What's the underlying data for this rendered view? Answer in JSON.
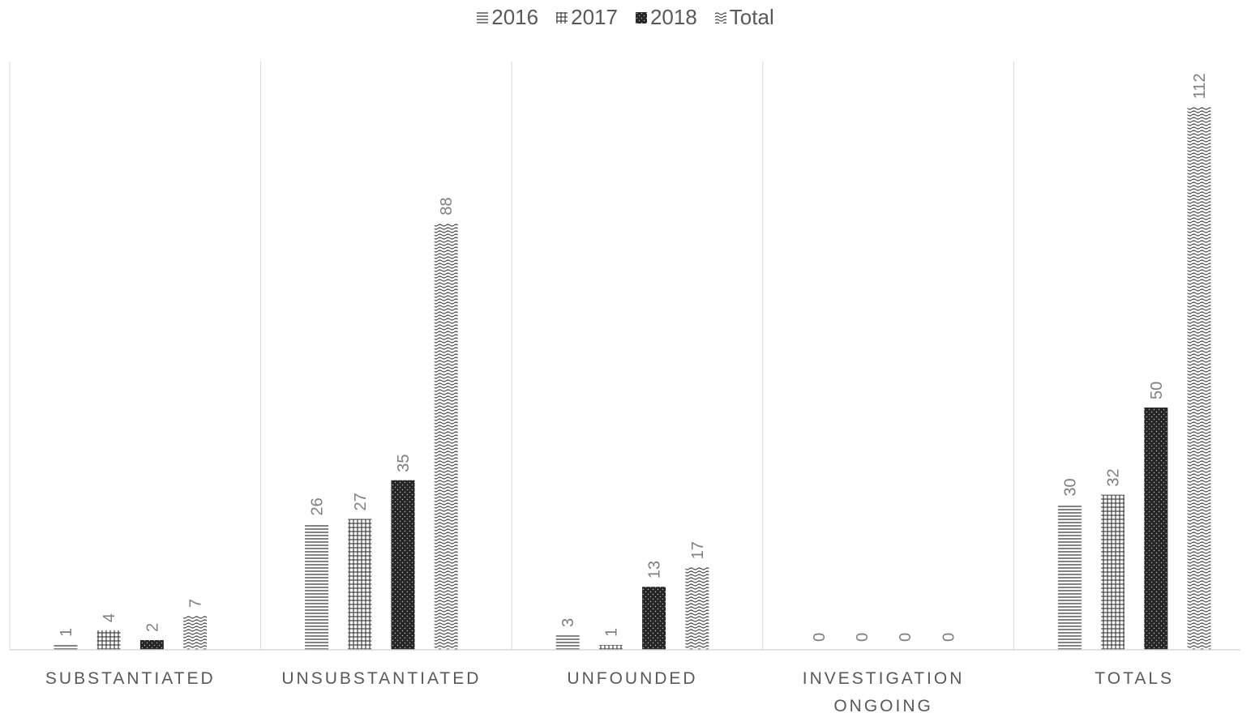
{
  "chart_data": {
    "type": "bar",
    "categories": [
      "SUBSTANTIATED",
      "UNSUBSTANTIATED",
      "UNFOUNDED",
      "INVESTIGATION ONGOING",
      "TOTALS"
    ],
    "series": [
      {
        "name": "2016",
        "pattern": "horizontal-lines",
        "values": [
          1,
          26,
          3,
          0,
          30
        ]
      },
      {
        "name": "2017",
        "pattern": "grid",
        "values": [
          4,
          27,
          1,
          0,
          32
        ]
      },
      {
        "name": "2018",
        "pattern": "dotted-dark",
        "values": [
          2,
          35,
          13,
          0,
          50
        ]
      },
      {
        "name": "Total",
        "pattern": "wave",
        "values": [
          7,
          88,
          17,
          0,
          112
        ]
      }
    ],
    "ylim": [
      0,
      120
    ],
    "legend_position": "top-center",
    "grid": false,
    "colors": {
      "text": "#595959",
      "data_label": "#7f7f7f",
      "dark_fill": "#262626",
      "pattern_line": "#404040",
      "separator": "#d9d9d9"
    }
  }
}
